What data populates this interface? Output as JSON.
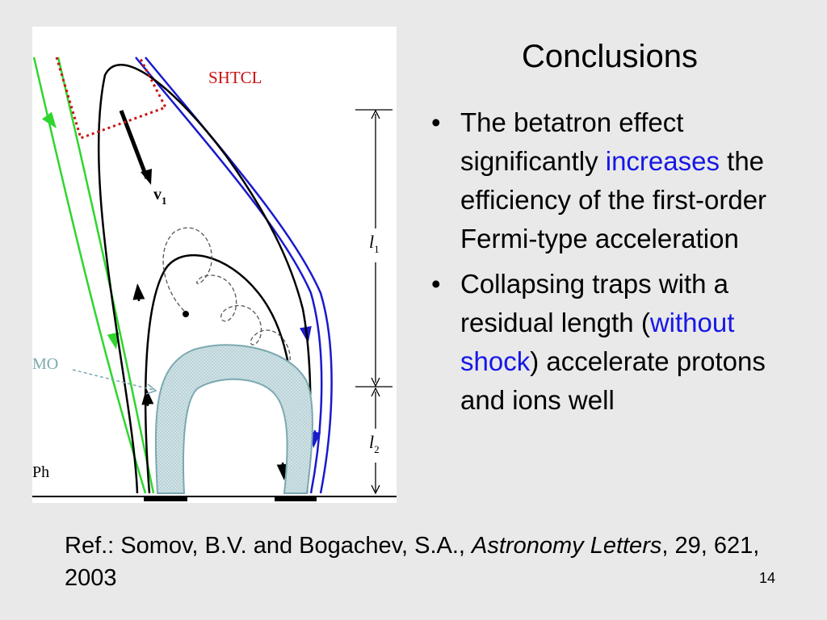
{
  "slide": {
    "title": "Conclusions",
    "bullets": [
      {
        "before": "The betatron effect significantly ",
        "highlight": "increases",
        "after": " the efficiency of the first-order Fermi-type acceleration"
      },
      {
        "before": "Collapsing traps with a residual length (",
        "highlight": "without shock",
        "after": ") accelerate protons and ions well"
      }
    ],
    "reference": {
      "prefix": "Ref.: Somov, B.V. and Bogachev, S.A., ",
      "journal": "Astronomy Letters",
      "suffix": ", 29, 621, 2003"
    },
    "page_number": "14",
    "highlight_color": "#1717e6"
  },
  "figure": {
    "labels": {
      "shtcl": "SHTCL",
      "velocity": "v",
      "velocity_sub": "1",
      "mo": "MO",
      "ph": "Ph",
      "length1": "l",
      "length1_sub": "1",
      "length2": "l",
      "length2_sub": "2"
    },
    "colors": {
      "open_field_lines": "#2ed62e",
      "outer_field_lines": "#1a1acc",
      "shtcl_boundary": "#cc1111",
      "mo_label": "#7aa9b0",
      "mo_fill": "#c9dfe3"
    }
  }
}
